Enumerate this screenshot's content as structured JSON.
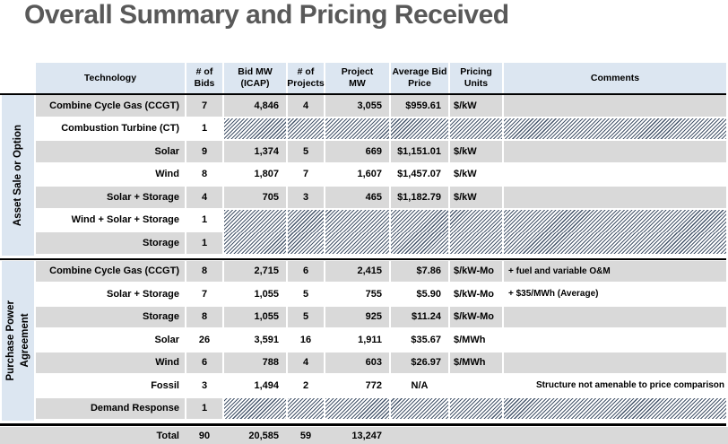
{
  "slide": {
    "title": "Overall Summary and Pricing Received"
  },
  "colors": {
    "header_bg": "#dce6f1",
    "row_gray": "#d9d9d9",
    "row_white": "#ffffff",
    "hatch_stripe": "#44546a",
    "title_text": "#595959",
    "divider": "#000000"
  },
  "table": {
    "headers": [
      {
        "lines": [
          "Technology"
        ]
      },
      {
        "lines": [
          "# of",
          "Bids"
        ]
      },
      {
        "lines": [
          "Bid MW",
          "(ICAP)"
        ]
      },
      {
        "lines": [
          "# of",
          "Projects"
        ]
      },
      {
        "lines": [
          "Project",
          "MW"
        ]
      },
      {
        "lines": [
          "Average Bid",
          "Price"
        ]
      },
      {
        "lines": [
          "Pricing",
          "Units"
        ]
      },
      {
        "lines": [
          "Comments"
        ]
      }
    ],
    "sections": [
      {
        "label_lines": [
          "Asset Sale or Option"
        ],
        "rows": [
          {
            "tech": "Combine Cycle Gas (CCGT)",
            "bids": "7",
            "bid_mw": "4,846",
            "projects": "4",
            "project_mw": "3,055",
            "price": "$959.61",
            "units": "$/kW",
            "comment": "",
            "shade": "gray",
            "hatched": false
          },
          {
            "tech": "Combustion Turbine (CT)",
            "bids": "1",
            "shade": "white",
            "hatched": true,
            "join_below": false
          },
          {
            "tech": "Solar",
            "bids": "9",
            "bid_mw": "1,374",
            "projects": "5",
            "project_mw": "669",
            "price": "$1,151.01",
            "units": "$/kW",
            "comment": "",
            "shade": "gray",
            "hatched": false
          },
          {
            "tech": "Wind",
            "bids": "8",
            "bid_mw": "1,807",
            "projects": "7",
            "project_mw": "1,607",
            "price": "$1,457.07",
            "units": "$/kW",
            "comment": "",
            "shade": "white",
            "hatched": false
          },
          {
            "tech": "Solar + Storage",
            "bids": "4",
            "bid_mw": "705",
            "projects": "3",
            "project_mw": "465",
            "price": "$1,182.79",
            "units": "$/kW",
            "comment": "",
            "shade": "gray",
            "hatched": false
          },
          {
            "tech": "Wind + Solar + Storage",
            "bids": "1",
            "shade": "white",
            "hatched": true,
            "join_below": true
          },
          {
            "tech": "Storage",
            "bids": "1",
            "shade": "gray",
            "hatched": true,
            "join_below": false
          }
        ]
      },
      {
        "label_lines": [
          "Purchase Power",
          "Agreement"
        ],
        "rows": [
          {
            "tech": "Combine Cycle Gas (CCGT)",
            "bids": "8",
            "bid_mw": "2,715",
            "projects": "6",
            "project_mw": "2,415",
            "price": "$7.86",
            "units": "$/kW-Mo",
            "comment": "+ fuel and variable O&M",
            "shade": "gray",
            "hatched": false
          },
          {
            "tech": "Solar + Storage",
            "bids": "7",
            "bid_mw": "1,055",
            "projects": "5",
            "project_mw": "755",
            "price": "$5.90",
            "units": "$/kW-Mo",
            "comment": "+ $35/MWh (Average)",
            "shade": "white",
            "hatched": false
          },
          {
            "tech": "Storage",
            "bids": "8",
            "bid_mw": "1,055",
            "projects": "5",
            "project_mw": "925",
            "price": "$11.24",
            "units": "$/kW-Mo",
            "comment": "",
            "shade": "gray",
            "hatched": false
          },
          {
            "tech": "Solar",
            "bids": "26",
            "bid_mw": "3,591",
            "projects": "16",
            "project_mw": "1,911",
            "price": "$35.67",
            "units": "$/MWh",
            "comment": "",
            "shade": "white",
            "hatched": false
          },
          {
            "tech": "Wind",
            "bids": "6",
            "bid_mw": "788",
            "projects": "4",
            "project_mw": "603",
            "price": "$26.97",
            "units": "$/MWh",
            "comment": "",
            "shade": "gray",
            "hatched": false
          },
          {
            "tech": "Fossil",
            "bids": "3",
            "bid_mw": "1,494",
            "projects": "2",
            "project_mw": "772",
            "price": "N/A",
            "price_align": "center",
            "units": "",
            "comment": "Structure not amenable to price comparison",
            "comment_align": "right",
            "shade": "white",
            "hatched": false
          },
          {
            "tech": "Demand Response",
            "bids": "1",
            "shade": "gray",
            "hatched": true,
            "join_below": false
          }
        ]
      }
    ],
    "total": {
      "label": "Total",
      "bids": "90",
      "bid_mw": "20,585",
      "projects": "59",
      "project_mw": "13,247"
    }
  }
}
